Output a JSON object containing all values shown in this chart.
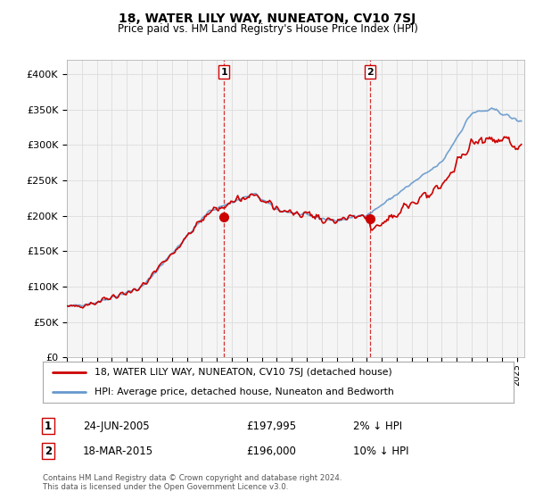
{
  "title": "18, WATER LILY WAY, NUNEATON, CV10 7SJ",
  "subtitle": "Price paid vs. HM Land Registry's House Price Index (HPI)",
  "legend_line1": "18, WATER LILY WAY, NUNEATON, CV10 7SJ (detached house)",
  "legend_line2": "HPI: Average price, detached house, Nuneaton and Bedworth",
  "annotation1": [
    "1",
    "24-JUN-2005",
    "£197,995",
    "2% ↓ HPI"
  ],
  "annotation2": [
    "2",
    "18-MAR-2015",
    "£196,000",
    "10% ↓ HPI"
  ],
  "footer": "Contains HM Land Registry data © Crown copyright and database right 2024.\nThis data is licensed under the Open Government Licence v3.0.",
  "hpi_color": "#a8c8e8",
  "hpi_line_color": "#6699cc",
  "price_color": "#cc0000",
  "marker_color": "#cc0000",
  "background_color": "#ffffff",
  "plot_bg_color": "#f5f5f5",
  "grid_color": "#dddddd",
  "ylim": [
    0,
    420000
  ],
  "yticks": [
    0,
    50000,
    100000,
    150000,
    200000,
    250000,
    300000,
    350000,
    400000
  ],
  "transaction1_year": 2005.48,
  "transaction2_year": 2015.21,
  "transaction1_price": 197995,
  "transaction2_price": 196000
}
